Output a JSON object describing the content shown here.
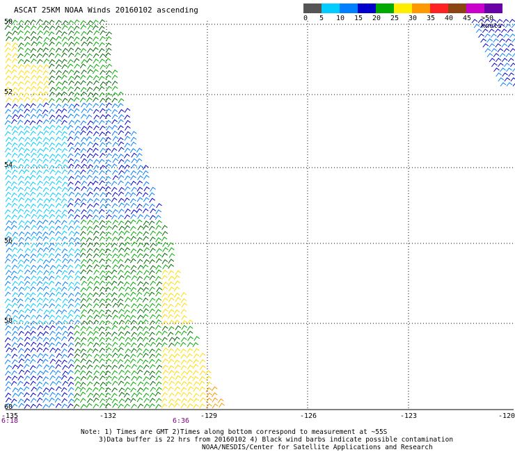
{
  "title": "ASCAT 25KM NOAA Winds 20160102 ascending",
  "scale": {
    "labels": [
      "0",
      "5",
      "10",
      "15",
      "20",
      "25",
      "30",
      "35",
      "40",
      "45",
      ">50 knots"
    ],
    "colors": [
      "#555555",
      "#00ccff",
      "#0080ff",
      "#0000cc",
      "#00aa00",
      "#ffee00",
      "#ff9900",
      "#ff2222",
      "#8b4513",
      "#cc00cc",
      "#6a00a8"
    ]
  },
  "latitude_labels": [
    "50",
    "52",
    "54",
    "56",
    "58",
    "60"
  ],
  "longitude_labels": [
    "-135",
    "-132",
    "-129",
    "-126",
    "-123",
    "-120"
  ],
  "time_labels": [
    "6:18",
    "6:36"
  ],
  "notes": {
    "line1": "Note: 1) Times are GMT 2)Times along bottom correspond to measurement at ~55S",
    "line2": "3)Data buffer is 22 hrs from 20160102 4) Black wind barbs indicate possible contamination",
    "line3": "NOAA/NESDIS/Center for Satellite Applications and Research"
  },
  "wind_regions": [
    {
      "area": "north",
      "color": "#00aa00"
    },
    {
      "area": "north-yellow",
      "color": "#ffee00"
    },
    {
      "area": "middle",
      "color": "#0080ff"
    },
    {
      "area": "light",
      "color": "#00ccff"
    },
    {
      "area": "south",
      "color": "#00aa00"
    },
    {
      "area": "south-orange",
      "color": "#ff9900"
    }
  ]
}
